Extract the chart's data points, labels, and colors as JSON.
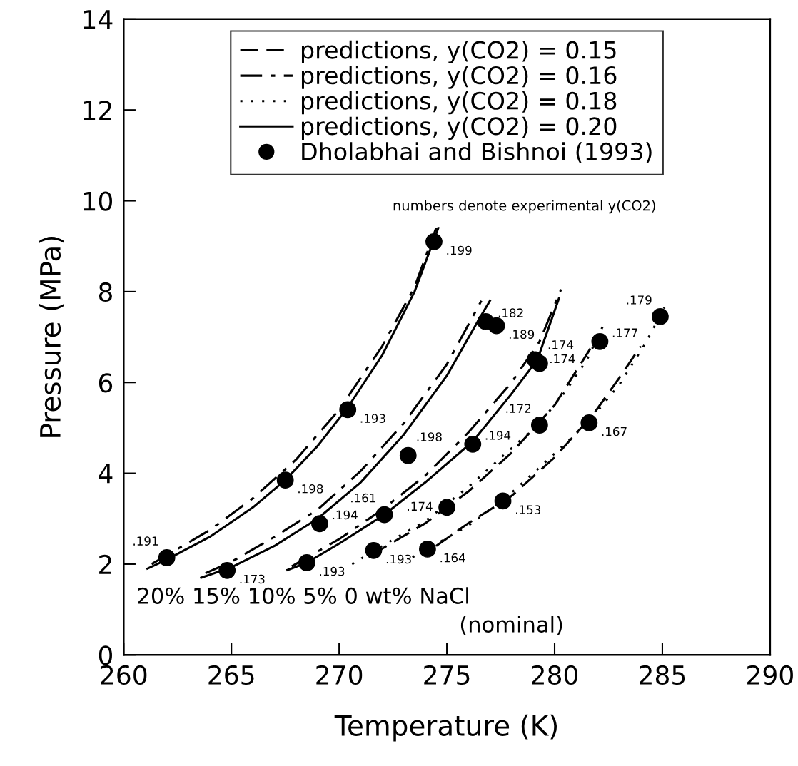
{
  "chart_data": {
    "type": "line",
    "xlabel": "Temperature (K)",
    "ylabel": "Pressure (MPa)",
    "xlim": [
      260,
      290
    ],
    "xticks": [
      260,
      265,
      270,
      275,
      280,
      285,
      290
    ],
    "ylim": [
      0,
      14
    ],
    "yticks": [
      0,
      2,
      4,
      6,
      8,
      10,
      12,
      14
    ],
    "grid": false,
    "legend": "top",
    "marker": "none",
    "annotations": [
      "numbers denote experimental y(CO2)",
      "20% 15% 10% 5% 0 wt% NaCl",
      "(nominal)",
      {
        "text": ".191",
        "x": 262.0,
        "y": 2.14
      },
      {
        "text": ".198",
        "x": 267.5,
        "y": 3.85
      },
      {
        "text": ".193",
        "x": 270.4,
        "y": 5.4
      },
      {
        "text": ".199",
        "x": 274.4,
        "y": 9.1
      },
      {
        "text": ".173",
        "x": 264.8,
        "y": 1.86
      },
      {
        "text": ".194",
        "x": 269.1,
        "y": 2.89
      },
      {
        "text": ".198",
        "x": 273.2,
        "y": 4.39
      },
      {
        "text": ".182",
        "x": 276.8,
        "y": 7.34
      },
      {
        "text": ".189",
        "x": 277.3,
        "y": 7.25
      },
      {
        "text": ".193",
        "x": 268.5,
        "y": 2.03
      },
      {
        "text": ".161",
        "x": 272.1,
        "y": 3.09
      },
      {
        "text": ".194",
        "x": 276.2,
        "y": 4.64
      },
      {
        "text": ".174",
        "x": 279.1,
        "y": 6.5
      },
      {
        "text": ".174",
        "x": 279.3,
        "y": 6.42
      },
      {
        "text": ".193",
        "x": 271.6,
        "y": 2.3
      },
      {
        "text": ".174",
        "x": 275.0,
        "y": 3.25
      },
      {
        "text": ".172",
        "x": 279.3,
        "y": 5.06
      },
      {
        "text": ".177",
        "x": 282.1,
        "y": 6.9
      },
      {
        "text": ".164",
        "x": 274.1,
        "y": 2.33
      },
      {
        "text": ".153",
        "x": 277.6,
        "y": 3.39
      },
      {
        "text": ".167",
        "x": 281.6,
        "y": 5.11
      },
      {
        "text": ".179",
        "x": 284.9,
        "y": 7.45
      }
    ],
    "series": [
      {
        "name": "predictions, y(CO2) = 0.15",
        "color": "#000000",
        "line_style": "dashed",
        "x": [
          271.5,
          274,
          276,
          278,
          280,
          282
        ],
        "values": [
          2.2,
          2.9,
          3.6,
          4.45,
          5.5,
          7.0
        ]
      },
      {
        "color": "#000000",
        "line_style": "dashed",
        "x": [
          274.5,
          276,
          278,
          280,
          281.8,
          283,
          284
        ],
        "values": [
          2.4,
          2.9,
          3.5,
          4.35,
          5.3,
          6.1,
          6.8
        ]
      },
      {
        "name": "predictions, y(CO2) = 0.16",
        "color": "#000000",
        "line_style": "dashdot",
        "x": [
          261.3,
          264,
          266,
          268,
          270,
          272,
          273.5,
          274.5
        ],
        "values": [
          2.0,
          2.75,
          3.45,
          4.3,
          5.4,
          6.8,
          8.1,
          9.4
        ]
      },
      {
        "color": "#000000",
        "line_style": "dashdot",
        "x": [
          263.8,
          265,
          267,
          269,
          271,
          273,
          275,
          276.6
        ],
        "values": [
          1.8,
          2.05,
          2.6,
          3.2,
          4.05,
          5.1,
          6.4,
          7.8
        ]
      },
      {
        "color": "#000000",
        "line_style": "dashdot",
        "x": [
          267.8,
          270,
          272,
          274,
          276,
          278,
          279.3,
          280.3
        ],
        "values": [
          1.95,
          2.55,
          3.2,
          3.95,
          4.9,
          6.0,
          6.9,
          8.05
        ]
      },
      {
        "name": "predictions, y(CO2) = 0.18",
        "color": "#000000",
        "line_style": "dotted",
        "x": [
          270.6,
          272,
          274,
          276,
          278,
          279.3,
          280.5,
          281.5,
          282.3
        ],
        "values": [
          2.0,
          2.4,
          2.95,
          3.7,
          4.55,
          5.1,
          5.8,
          6.5,
          7.3
        ]
      },
      {
        "color": "#000000",
        "line_style": "dotted",
        "x": [
          273.4,
          274.1,
          276,
          277.6,
          279,
          280.5,
          281.6,
          283,
          284.2,
          285.1
        ],
        "values": [
          2.15,
          2.33,
          2.85,
          3.4,
          4.0,
          4.65,
          5.15,
          5.95,
          6.85,
          7.65
        ]
      },
      {
        "name": "predictions, y(CO2) = 0.20",
        "color": "#000000",
        "line_style": "solid",
        "x": [
          261.1,
          262,
          264,
          266,
          267.5,
          269,
          270.4,
          272,
          273.5,
          274.6
        ],
        "values": [
          1.9,
          2.1,
          2.6,
          3.25,
          3.85,
          4.6,
          5.45,
          6.6,
          8.0,
          9.4
        ]
      },
      {
        "color": "#000000",
        "line_style": "solid",
        "x": [
          263.6,
          265,
          267,
          269,
          271,
          273,
          275,
          276.5,
          277.0
        ],
        "values": [
          1.7,
          1.93,
          2.4,
          3.0,
          3.8,
          4.85,
          6.15,
          7.4,
          7.8
        ]
      },
      {
        "color": "#000000",
        "line_style": "solid",
        "x": [
          267.6,
          268.5,
          270,
          272.1,
          274,
          276.2,
          278,
          279.2,
          280.2
        ],
        "values": [
          1.87,
          2.03,
          2.45,
          3.09,
          3.8,
          4.7,
          5.75,
          6.5,
          7.85
        ]
      },
      {
        "name": "Dholabhai and Bishnoi (1993)",
        "type": "scatter",
        "marker": "circle",
        "color": "#000000",
        "x": [
          262.0,
          267.5,
          270.4,
          274.4,
          264.8,
          269.1,
          273.2,
          276.8,
          277.3,
          268.5,
          272.1,
          276.2,
          279.1,
          279.3,
          271.6,
          275.0,
          279.3,
          282.1,
          274.1,
          277.6,
          281.6,
          284.9
        ],
        "values": [
          2.14,
          3.85,
          5.4,
          9.1,
          1.86,
          2.89,
          4.39,
          7.34,
          7.25,
          2.03,
          3.09,
          4.64,
          6.5,
          6.42,
          2.3,
          3.25,
          5.06,
          6.9,
          2.33,
          3.39,
          5.11,
          7.45
        ]
      }
    ]
  }
}
